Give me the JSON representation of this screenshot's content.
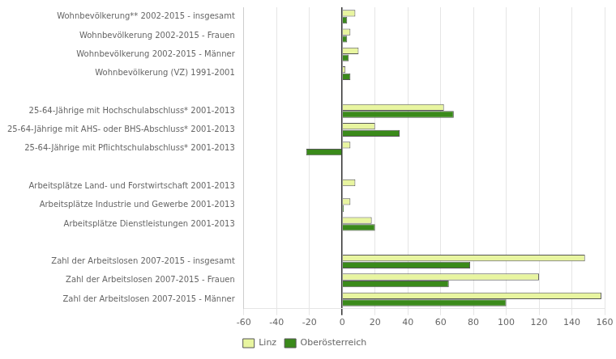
{
  "chart_data": {
    "type": "bar",
    "orientation": "horizontal",
    "categories": [
      "Wohnbevölkerung** 2002-2015 - insgesamt",
      "Wohnbevölkerung 2002-2015 - Frauen",
      "Wohnbevölkerung 2002-2015 - Männer",
      "Wohnbevölkerung (VZ) 1991-2001",
      null,
      "25-64-Jährige mit Hochschulabschluss* 2001-2013",
      "25-64-Jährige mit AHS- oder BHS-Abschluss* 2001-2013",
      "25-64-Jährige mit Pflichtschulabschluss* 2001-2013",
      null,
      "Arbeitsplätze Land- und Forstwirtschaft 2001-2013",
      "Arbeitsplätze Industrie und Gewerbe 2001-2013",
      "Arbeitsplätze Dienstleistungen 2001-2013",
      null,
      "Zahl der Arbeitslosen 2007-2015 - insgesamt",
      "Zahl der Arbeitslosen 2007-2015 - Frauen",
      "Zahl der Arbeitslosen 2007-2015 - Männer"
    ],
    "series": [
      {
        "name": "Linz",
        "color": "#e8f5a0",
        "values": [
          8,
          5,
          10,
          2,
          null,
          62,
          20,
          5,
          null,
          8,
          5,
          18,
          null,
          148,
          120,
          158
        ]
      },
      {
        "name": "Oberösterreich",
        "color": "#3a8a1a",
        "values": [
          3,
          3,
          4,
          5,
          null,
          68,
          35,
          -22,
          null,
          0,
          1,
          20,
          null,
          78,
          65,
          100
        ]
      }
    ],
    "xlim": [
      -60,
      160
    ],
    "xticks": [
      -60,
      -40,
      -20,
      0,
      20,
      40,
      60,
      80,
      100,
      120,
      140,
      160
    ],
    "grid": true,
    "legend": "bottom"
  }
}
